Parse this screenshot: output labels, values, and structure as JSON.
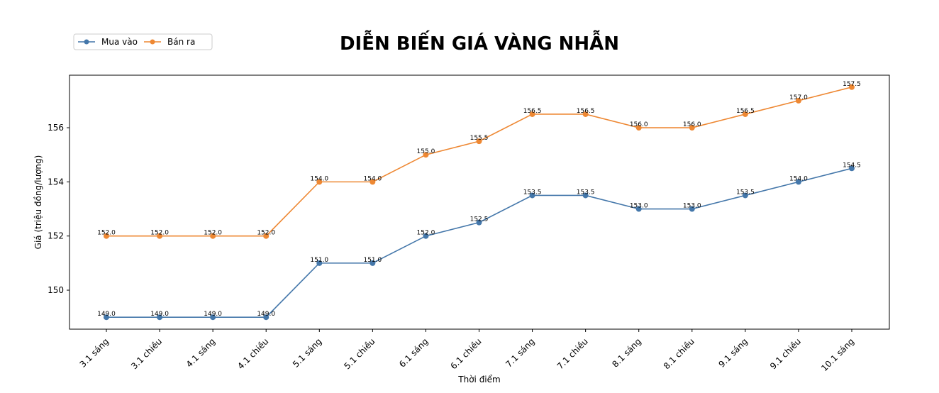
{
  "chart_data": {
    "type": "line",
    "title": "DIỄN BIẾN GIÁ VÀNG NHẪN",
    "xlabel": "Thời điểm",
    "ylabel": "Giá (triệu đồng/lượng)",
    "categories": [
      "3.1 sáng",
      "3.1 chiều",
      "4.1 sáng",
      "4.1 chiều",
      "5.1 sáng",
      "5.1 chiều",
      "6.1 sáng",
      "6.1 chiều",
      "7.1 sáng",
      "7.1 chiều",
      "8.1 sáng",
      "8.1 chiều",
      "9.1 sáng",
      "9.1 chiều",
      "10.1 sáng"
    ],
    "series": [
      {
        "name": "Mua vào",
        "color": "#4477aa",
        "values": [
          149.0,
          149.0,
          149.0,
          149.0,
          151.0,
          151.0,
          152.0,
          152.5,
          153.5,
          153.5,
          153.0,
          153.0,
          153.5,
          154.0,
          154.5
        ]
      },
      {
        "name": "Bán ra",
        "color": "#ee8833",
        "values": [
          152.0,
          152.0,
          152.0,
          152.0,
          154.0,
          154.0,
          155.0,
          155.5,
          156.5,
          156.5,
          156.0,
          156.0,
          156.5,
          157.0,
          157.5
        ]
      }
    ],
    "yticks": [
      150,
      152,
      154,
      156
    ],
    "ylim": [
      148.56,
      157.94
    ],
    "grid": false,
    "legend_position": "top-left",
    "data_labels": true
  }
}
